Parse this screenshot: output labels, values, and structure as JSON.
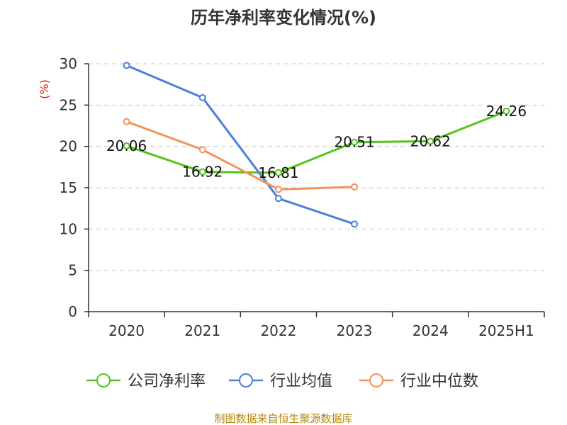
{
  "chart_data": {
    "type": "line",
    "title": "历年净利率变化情况(%)",
    "ylabel": "(%)",
    "categories": [
      "2020",
      "2021",
      "2022",
      "2023",
      "2024",
      "2025H1"
    ],
    "ylim": [
      0,
      30
    ],
    "yticks": [
      0,
      5,
      10,
      15,
      20,
      25,
      30
    ],
    "grid": true,
    "legend_position": "bottom",
    "series": [
      {
        "name": "公司净利率",
        "color": "#52c41a",
        "values": [
          20.06,
          16.92,
          16.81,
          20.51,
          20.62,
          24.26
        ],
        "labels": [
          "20.06",
          "16.92",
          "16.81",
          "20.51",
          "20.62",
          "24.26"
        ]
      },
      {
        "name": "行业均值",
        "color": "#4a7fdc",
        "values": [
          29.8,
          25.9,
          13.7,
          10.6,
          null,
          null
        ]
      },
      {
        "name": "行业中位数",
        "color": "#f5915c",
        "values": [
          23.0,
          19.6,
          14.8,
          15.1,
          null,
          null
        ]
      }
    ],
    "source": "制图数据来自恒生聚源数据库"
  }
}
